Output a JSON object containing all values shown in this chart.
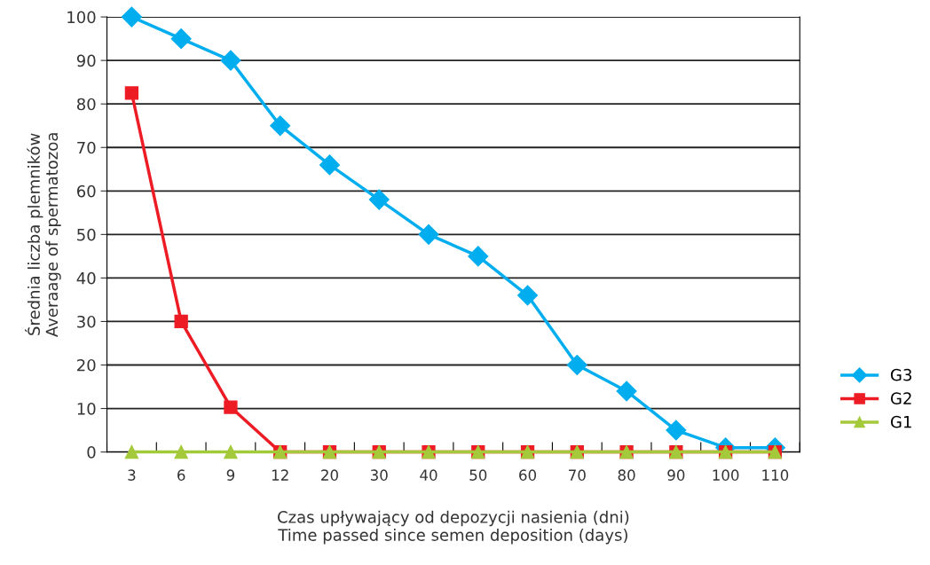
{
  "chart_data": {
    "type": "line",
    "categories": [
      "3",
      "6",
      "9",
      "12",
      "20",
      "30",
      "40",
      "50",
      "60",
      "70",
      "80",
      "90",
      "100",
      "110"
    ],
    "series": [
      {
        "name": "G3",
        "color": "#00aeef",
        "marker": "diamond",
        "values": [
          100,
          95,
          90,
          75,
          66,
          58,
          50,
          45,
          36,
          20,
          14,
          5,
          1,
          1
        ]
      },
      {
        "name": "G2",
        "color": "#ed1c24",
        "marker": "square",
        "values": [
          82.5,
          30,
          10.3,
          0,
          0,
          0,
          0,
          0,
          0,
          0,
          0,
          0,
          0,
          0
        ]
      },
      {
        "name": "G1",
        "color": "#a4c93a",
        "marker": "triangle",
        "values": [
          0,
          0,
          0,
          0,
          0,
          0,
          0,
          0,
          0,
          0,
          0,
          0,
          0,
          0
        ]
      }
    ],
    "ylim": [
      0,
      100
    ],
    "yticks": [
      0,
      10,
      20,
      30,
      40,
      50,
      60,
      70,
      80,
      90,
      100
    ],
    "xlabel": "Czas upływający od depozycji nasienia (dni)\nTime passed since semen deposition (days)",
    "ylabel": "Średnia liczba plemników\nAveraage of spermatozoa",
    "grid": "y",
    "legend": "right",
    "line_style": "solid"
  }
}
